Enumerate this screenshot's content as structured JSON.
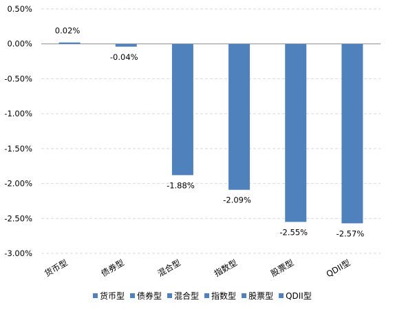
{
  "chart_data": {
    "type": "bar",
    "categories": [
      "货币型",
      "债券型",
      "混合型",
      "指数型",
      "股票型",
      "QDII型"
    ],
    "values": [
      0.02,
      -0.04,
      -1.88,
      -2.09,
      -2.55,
      -2.57
    ],
    "value_labels": [
      "0.02%",
      "-0.04%",
      "-1.88%",
      "-2.09%",
      "-2.55%",
      "-2.57%"
    ],
    "title": "",
    "xlabel": "",
    "ylabel": "",
    "ylim": [
      -3.0,
      0.5
    ],
    "yticks": [
      0.5,
      0.0,
      -0.5,
      -1.0,
      -1.5,
      -2.0,
      -2.5,
      -3.0
    ],
    "ytick_labels": [
      "0.50%",
      "0.00%",
      "-0.50%",
      "-1.00%",
      "-1.50%",
      "-2.00%",
      "-2.50%",
      "-3.00%"
    ],
    "grid": true,
    "bar_color": "#4f81bd",
    "legend": {
      "position": "bottom",
      "entries": [
        "货币型",
        "债券型",
        "混合型",
        "指数型",
        "股票型",
        "QDII型"
      ]
    }
  }
}
